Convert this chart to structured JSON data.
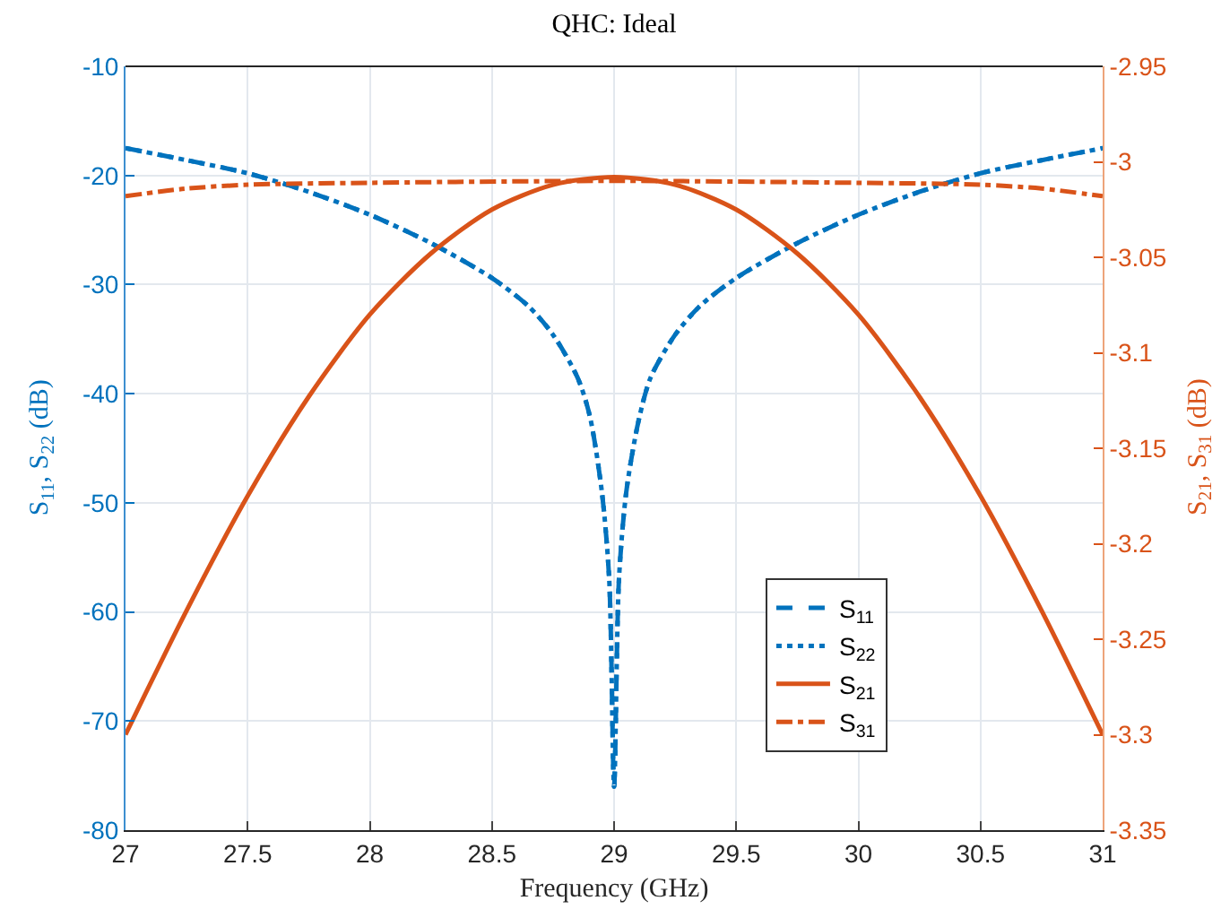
{
  "chart_data": {
    "type": "line",
    "title": "QHC: Ideal",
    "xlabel": "Frequency (GHz)",
    "ylabel": "S$_{11}$, S$_{22}$ (dB)",
    "y2label": "S$_{21}$, S$_{31}$ (dB)",
    "xlim": [
      27,
      31
    ],
    "xticks": [
      27,
      27.5,
      28,
      28.5,
      29,
      29.5,
      30,
      30.5,
      31
    ],
    "ylim": [
      -80,
      -10
    ],
    "yticks": [
      -80,
      -70,
      -60,
      -50,
      -40,
      -30,
      -20,
      -10
    ],
    "y2lim": [
      -3.35,
      -2.95
    ],
    "y2ticks": [
      -3.35,
      -3.3,
      -3.25,
      -3.2,
      -3.15,
      -3.1,
      -3.05,
      {
        "value": -3.0,
        "label": "-3"
      },
      -2.95
    ],
    "grid": true,
    "legend": "bottom right",
    "marker": "none",
    "series": [
      {
        "name": "S$_{11}$",
        "color": "#0072bd",
        "line_style": "dashed",
        "x": [
          27,
          27.25,
          27.5,
          27.75,
          28,
          28.25,
          28.5,
          28.65,
          28.75,
          28.85,
          28.9,
          28.95,
          28.98,
          29,
          29.02,
          29.05,
          29.1,
          29.15,
          29.25,
          29.35,
          29.5,
          29.75,
          30,
          30.25,
          30.5,
          30.75,
          31
        ],
        "values": [
          -17.5,
          -18.6,
          -19.8,
          -21.5,
          -23.6,
          -26.2,
          -29.4,
          -32,
          -34.6,
          -38.5,
          -42,
          -49,
          -57,
          -76,
          -57,
          -49,
          -42.5,
          -38.5,
          -34.6,
          -32,
          -29.4,
          -26.2,
          -23.6,
          -21.5,
          -19.8,
          -18.6,
          -17.5
        ]
      },
      {
        "name": "S$_{22}$",
        "color": "#0072bd",
        "line_style": "dotted",
        "x": [
          27,
          27.25,
          27.5,
          27.75,
          28,
          28.25,
          28.5,
          28.65,
          28.75,
          28.85,
          28.9,
          28.95,
          28.98,
          29,
          29.02,
          29.05,
          29.1,
          29.15,
          29.25,
          29.35,
          29.5,
          29.75,
          30,
          30.25,
          30.5,
          30.75,
          31
        ],
        "values": [
          -17.5,
          -18.6,
          -19.8,
          -21.5,
          -23.6,
          -26.2,
          -29.4,
          -32,
          -34.6,
          -38.5,
          -42,
          -49,
          -57,
          -76,
          -57,
          -49,
          -42.5,
          -38.5,
          -34.6,
          -32,
          -29.4,
          -26.2,
          -23.6,
          -21.5,
          -19.8,
          -18.6,
          -17.5
        ]
      },
      {
        "name": "S$_{21}$",
        "color": "#d95319",
        "line_style": "solid",
        "axis": "y2",
        "x": [
          27,
          27.25,
          27.5,
          27.75,
          28,
          28.25,
          28.5,
          28.75,
          29,
          29.25,
          29.5,
          29.75,
          30,
          30.25,
          30.5,
          30.75,
          31
        ],
        "values": [
          -3.3,
          -3.235,
          -3.175,
          -3.123,
          -3.08,
          -3.048,
          -3.025,
          -3.012,
          -3.008,
          -3.012,
          -3.025,
          -3.048,
          -3.08,
          -3.123,
          -3.175,
          -3.235,
          -3.3
        ]
      },
      {
        "name": "S$_{31}$",
        "color": "#d95319",
        "line_style": "dashdot",
        "axis": "y2",
        "x": [
          27,
          27.25,
          27.5,
          28,
          29,
          30,
          30.5,
          30.75,
          31
        ],
        "values": [
          -3.018,
          -3.014,
          -3.012,
          -3.011,
          -3.01,
          -3.011,
          -3.012,
          -3.014,
          -3.018
        ]
      }
    ]
  }
}
